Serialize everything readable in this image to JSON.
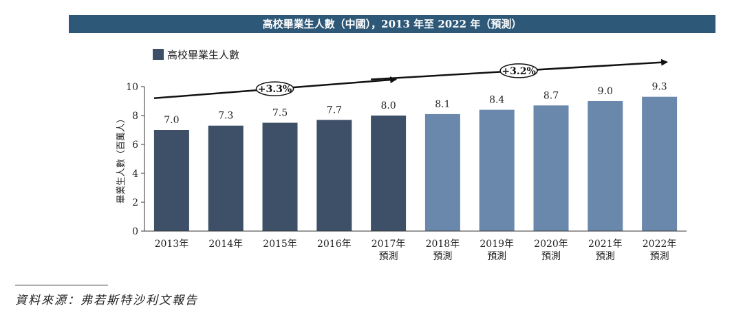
{
  "chart_data": {
    "type": "bar",
    "title": "高校畢業生人數（中國），2013 年至 2022 年（預測）",
    "ylabel": "畢業生人數（百萬人）",
    "xlabel": "",
    "ylim": [
      0,
      10
    ],
    "yticks": [
      0,
      2,
      4,
      6,
      8,
      10
    ],
    "legend": {
      "label": "高校畢業生人數",
      "placement": "top-left",
      "color": "#3d5068"
    },
    "categories": [
      [
        "2013年"
      ],
      [
        "2014年"
      ],
      [
        "2015年"
      ],
      [
        "2016年"
      ],
      [
        "2017年",
        "預測"
      ],
      [
        "2018年",
        "預測"
      ],
      [
        "2019年",
        "預測"
      ],
      [
        "2020年",
        "預測"
      ],
      [
        "2021年",
        "預測"
      ],
      [
        "2022年",
        "預測"
      ]
    ],
    "values": [
      7.0,
      7.3,
      7.5,
      7.7,
      8.0,
      8.1,
      8.4,
      8.7,
      9.0,
      9.3
    ],
    "value_labels": [
      "7.0",
      "7.3",
      "7.5",
      "7.7",
      "8.0",
      "8.1",
      "8.4",
      "8.7",
      "9.0",
      "9.3"
    ],
    "bar_colors": [
      "#3d5068",
      "#3d5068",
      "#3d5068",
      "#3d5068",
      "#3d5068",
      "#6a88ac",
      "#6a88ac",
      "#6a88ac",
      "#6a88ac",
      "#6a88ac"
    ],
    "annotations": [
      {
        "label": "+3.3%",
        "from_category": 0,
        "to_category": 4,
        "from_value": 9.2,
        "to_value": 10.5
      },
      {
        "label": "+3.2%",
        "from_category": 4,
        "to_category": 9,
        "from_value": 10.5,
        "to_value": 11.7
      }
    ],
    "grid": false
  },
  "source_text": "資料來源：弗若斯特沙利文報告"
}
